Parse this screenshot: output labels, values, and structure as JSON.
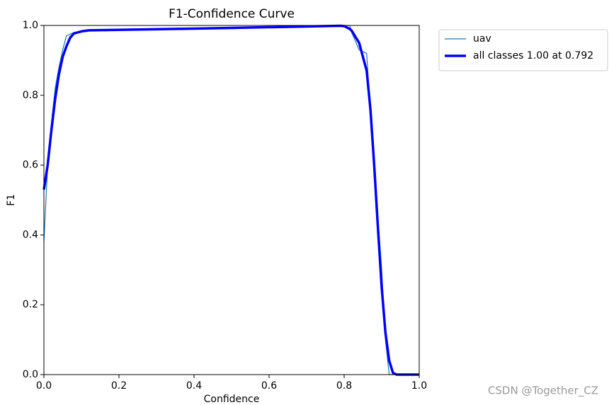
{
  "chart_data": {
    "type": "line",
    "title": "F1-Confidence Curve",
    "xlabel": "Confidence",
    "ylabel": "F1",
    "x": [
      0,
      0.01,
      0.02,
      0.03,
      0.04,
      0.05,
      0.06,
      0.07,
      0.08,
      0.1,
      0.12,
      0.3,
      0.5,
      0.7,
      0.79,
      0.8,
      0.815,
      0.82,
      0.84,
      0.86,
      0.87,
      0.88,
      0.89,
      0.9,
      0.91,
      0.92,
      0.93,
      0.94,
      1.0
    ],
    "series": [
      {
        "name": "uav",
        "color": "#1f77b4",
        "width": 1.2,
        "values": [
          0.38,
          0.6,
          0.72,
          0.82,
          0.88,
          0.93,
          0.97,
          0.975,
          0.98,
          0.983,
          0.985,
          0.988,
          0.992,
          0.996,
          0.999,
          1.0,
          1.0,
          0.98,
          0.93,
          0.92,
          0.75,
          0.6,
          0.45,
          0.3,
          0.1,
          0,
          0,
          0,
          0
        ]
      },
      {
        "name": "all classes 1.00 at 0.792",
        "color": "#0000ff",
        "width": 3.5,
        "values": [
          0.53,
          0.6,
          0.7,
          0.79,
          0.86,
          0.91,
          0.94,
          0.965,
          0.977,
          0.983,
          0.986,
          0.989,
          0.993,
          0.997,
          0.999,
          0.998,
          0.99,
          0.985,
          0.95,
          0.87,
          0.76,
          0.6,
          0.42,
          0.25,
          0.12,
          0.04,
          0.005,
          0,
          0
        ]
      }
    ],
    "xlim": [
      0,
      1
    ],
    "ylim": [
      0,
      1
    ],
    "xticks": [
      {
        "value": 0,
        "label": "0.0"
      },
      0.2,
      0.4,
      0.6,
      0.8,
      {
        "value": 1,
        "label": "1.0"
      }
    ],
    "yticks": [
      {
        "value": 0,
        "label": "0.0"
      },
      0.2,
      0.4,
      0.6,
      0.8,
      {
        "value": 1,
        "label": "1.0"
      }
    ],
    "legend": "upper-right-outside",
    "watermark": "CSDN @Together_CZ"
  }
}
